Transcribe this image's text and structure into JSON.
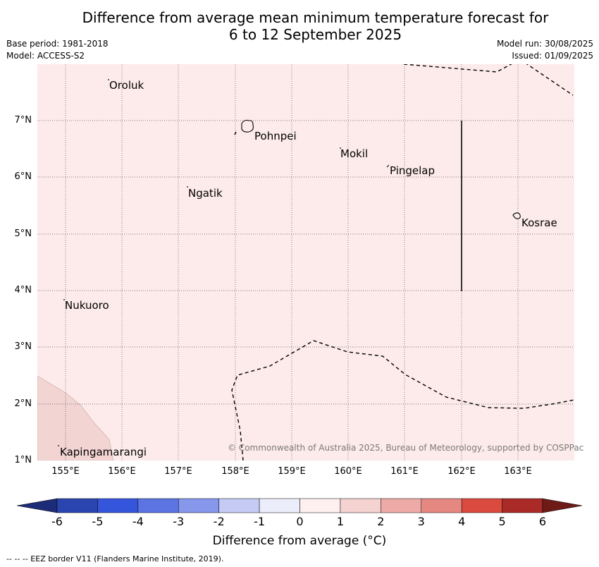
{
  "title_line1": "Difference from average mean minimum temperature forecast for",
  "title_line2": "6 to 12 September 2025",
  "base_period": "Base period: 1981-2018",
  "model": "Model: ACCESS-S2",
  "model_run": "Model run: 30/08/2025",
  "issued": "Issued: 01/09/2025",
  "lat_labels": [
    "7°N",
    "6°N",
    "5°N",
    "4°N",
    "3°N",
    "2°N",
    "1°N"
  ],
  "lon_labels": [
    "155°E",
    "156°E",
    "157°E",
    "158°E",
    "159°E",
    "160°E",
    "161°E",
    "162°E",
    "163°E"
  ],
  "places": {
    "oroluk": "Oroluk",
    "pohnpei": "Pohnpei",
    "mokil": "Mokil",
    "pingelap": "Pingelap",
    "ngatik": "Ngatik",
    "kosrae": "Kosrae",
    "nukuoro": "Nukuoro",
    "kapingamarangi": "Kapingamarangi"
  },
  "copyright": "© Commonwealth of Australia 2025, Bureau of Meteorology, supported by COSPPac",
  "colorbar": {
    "ticks": [
      "-6",
      "-5",
      "-4",
      "-3",
      "-2",
      "-1",
      "0",
      "1",
      "2",
      "3",
      "4",
      "5",
      "6"
    ],
    "colors": [
      "#2a45b0",
      "#3556dc",
      "#5b74e2",
      "#8797eb",
      "#c5cbf4",
      "#ecedfb",
      "#fdf0ee",
      "#f4d3d1",
      "#edaaa7",
      "#e58882",
      "#db4a3f",
      "#a92a26"
    ],
    "under_color": "#1d2c78",
    "over_color": "#6e1a16",
    "label": "Difference from average (°C)"
  },
  "footnote": "--  --  -- EEZ border V11 (Flanders Marine Institute, 2019).",
  "map_colors": {
    "background": "#fcebea",
    "lower_left_shade": "#f2d4d2"
  }
}
